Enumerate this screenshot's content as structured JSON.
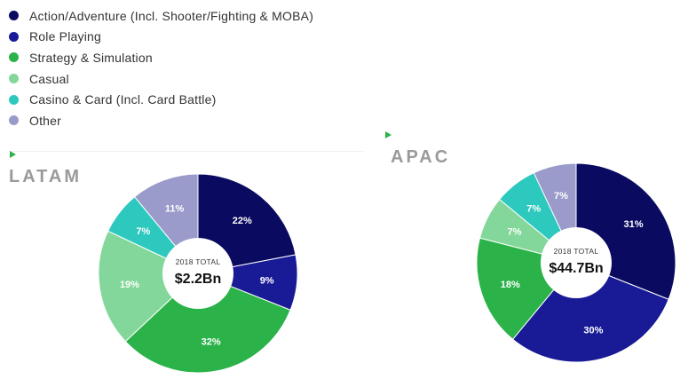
{
  "legend": [
    {
      "label": "Action/Adventure (Incl. Shooter/Fighting & MOBA)",
      "color": "#0a0a60"
    },
    {
      "label": "Role Playing",
      "color": "#181a96"
    },
    {
      "label": "Strategy & Simulation",
      "color": "#2bb34a"
    },
    {
      "label": "Casual",
      "color": "#84d79a"
    },
    {
      "label": "Casino & Card (Incl. Card Battle)",
      "color": "#2ec9be"
    },
    {
      "label": "Other",
      "color": "#9a9acb"
    }
  ],
  "chart_data": [
    {
      "type": "pie",
      "title": "LATAM",
      "categories": [
        "Action/Adventure (Incl. Shooter/Fighting & MOBA)",
        "Role Playing",
        "Strategy & Simulation",
        "Casual",
        "Casino & Card (Incl. Card Battle)",
        "Other"
      ],
      "values": [
        22,
        9,
        32,
        19,
        7,
        11
      ],
      "labels": [
        "22%",
        "9%",
        "32%",
        "19%",
        "7%",
        "11%"
      ],
      "total_caption": "2018 TOTAL",
      "total_value": "$2.2Bn"
    },
    {
      "type": "pie",
      "title": "APAC",
      "categories": [
        "Action/Adventure (Incl. Shooter/Fighting & MOBA)",
        "Role Playing",
        "Strategy & Simulation",
        "Casual",
        "Casino & Card (Incl. Card Battle)",
        "Other"
      ],
      "values": [
        31,
        30,
        18,
        7,
        7,
        7
      ],
      "labels": [
        "31%",
        "30%",
        "18%",
        "7%",
        "7%",
        "7%"
      ],
      "total_caption": "2018 TOTAL",
      "total_value": "$44.7Bn"
    }
  ]
}
